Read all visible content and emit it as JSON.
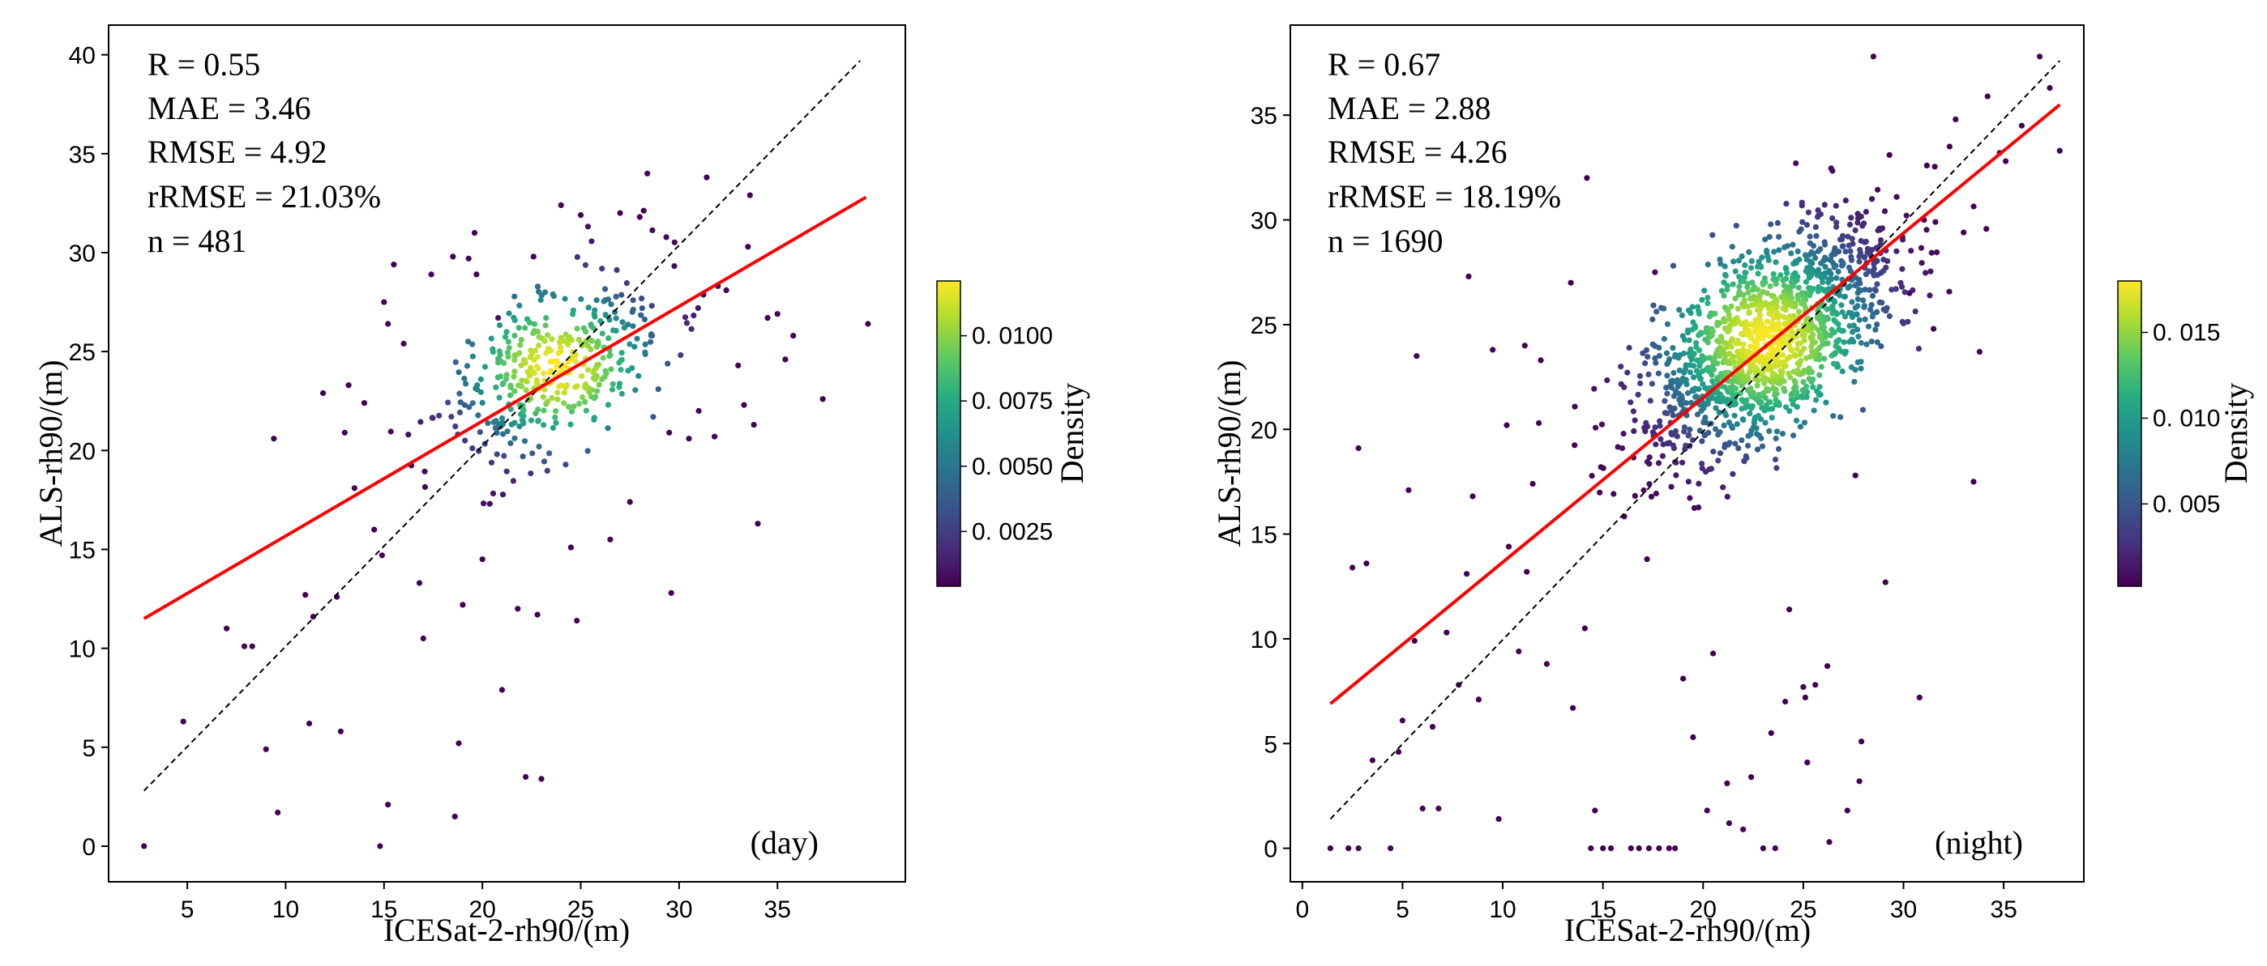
{
  "chart_data": [
    {
      "type": "scatter",
      "panel": "day",
      "title": "",
      "xlabel": "ICESat-2-rh90/(m)",
      "ylabel": "ALS-rh90/(m)",
      "xlim": [
        1,
        41.5
      ],
      "ylim": [
        -1.8,
        41.5
      ],
      "xticks": [
        5,
        10,
        15,
        20,
        25,
        30,
        35
      ],
      "yticks": [
        0,
        5,
        10,
        15,
        20,
        25,
        30,
        35,
        40
      ],
      "stats": [
        "R = 0.55",
        "MAE = 3.46",
        "RMSE = 4.92",
        "rRMSE = 21.03%",
        "n = 481"
      ],
      "tag": "(day)",
      "one_to_one_line": [
        [
          2.8,
          2.8
        ],
        [
          39.2,
          39.7
        ]
      ],
      "fit_line": [
        [
          2.8,
          11.5
        ],
        [
          39.5,
          32.8
        ]
      ],
      "colorbar": {
        "label": "Density",
        "min": 0.0004,
        "max": 0.0121,
        "ticks": [
          0.0025,
          0.005,
          0.0075,
          0.01
        ],
        "tick_labels": [
          "0. 0025",
          "0. 0050",
          "0. 0075",
          "0. 0100"
        ]
      },
      "cluster": {
        "center": [
          23.8,
          24.2
        ],
        "sx": 3.0,
        "sy": 2.5,
        "rho": 0.45,
        "count": 400,
        "seed": 11
      },
      "outliers": [
        [
          2.8,
          0
        ],
        [
          4.8,
          6.3
        ],
        [
          7,
          11
        ],
        [
          7.9,
          10.1
        ],
        [
          8.3,
          10.1
        ],
        [
          9,
          4.9
        ],
        [
          9.4,
          20.6
        ],
        [
          9.6,
          1.7
        ],
        [
          11,
          12.7
        ],
        [
          11.2,
          6.2
        ],
        [
          11.4,
          11.6
        ],
        [
          11.9,
          22.9
        ],
        [
          12.6,
          12.6
        ],
        [
          12.8,
          5.8
        ],
        [
          13,
          20.9
        ],
        [
          13.2,
          23.3
        ],
        [
          13.5,
          18.1
        ],
        [
          14,
          22.4
        ],
        [
          14.5,
          16
        ],
        [
          14.8,
          0
        ],
        [
          14.9,
          14.7
        ],
        [
          15.2,
          2.1
        ],
        [
          15,
          27.5
        ],
        [
          15.2,
          26.4
        ],
        [
          15.5,
          29.4
        ],
        [
          16,
          25.4
        ],
        [
          16.8,
          13.3
        ],
        [
          17,
          10.5
        ],
        [
          17.4,
          28.9
        ],
        [
          18.5,
          29.8
        ],
        [
          18.6,
          1.5
        ],
        [
          18.8,
          5.2
        ],
        [
          19,
          12.2
        ],
        [
          19.3,
          29.7
        ],
        [
          19.6,
          31
        ],
        [
          19.7,
          28.9
        ],
        [
          20,
          14.5
        ],
        [
          20.8,
          26.7
        ],
        [
          21,
          7.9
        ],
        [
          21.8,
          12
        ],
        [
          22.2,
          3.5
        ],
        [
          22.6,
          29.8
        ],
        [
          22.8,
          11.7
        ],
        [
          23,
          3.4
        ],
        [
          24,
          32.4
        ],
        [
          24.5,
          15.1
        ],
        [
          24.8,
          11.4
        ],
        [
          25,
          31.9
        ],
        [
          26.5,
          15.5
        ],
        [
          27,
          32
        ],
        [
          27.5,
          17.4
        ],
        [
          28,
          31.8
        ],
        [
          29.5,
          20.9
        ],
        [
          29.6,
          12.8
        ],
        [
          30.5,
          20.6
        ],
        [
          31,
          22
        ],
        [
          31.4,
          33.8
        ],
        [
          31.8,
          20.7
        ],
        [
          32.4,
          28.1
        ],
        [
          33,
          24.3
        ],
        [
          33.3,
          22.3
        ],
        [
          33.5,
          30.3
        ],
        [
          33.6,
          32.9
        ],
        [
          33.8,
          21.3
        ],
        [
          34,
          16.3
        ],
        [
          34.5,
          26.7
        ],
        [
          35,
          26.9
        ],
        [
          35.4,
          24.6
        ],
        [
          35.8,
          25.8
        ],
        [
          37.3,
          22.6
        ],
        [
          39.6,
          26.4
        ]
      ]
    },
    {
      "type": "scatter",
      "panel": "night",
      "title": "",
      "xlabel": "ICESat-2-rh90/(m)",
      "ylabel": "ALS-rh90/(m)",
      "xlim": [
        -0.6,
        39
      ],
      "ylim": [
        -1.6,
        39.3
      ],
      "xticks": [
        0,
        5,
        10,
        15,
        20,
        25,
        30,
        35
      ],
      "yticks": [
        0,
        5,
        10,
        15,
        20,
        25,
        30,
        35
      ],
      "stats": [
        "R = 0.67",
        "MAE = 2.88",
        "RMSE = 4.26",
        "rRMSE = 18.19%",
        "n = 1690"
      ],
      "tag": "(night)",
      "one_to_one_line": [
        [
          1.4,
          1.4
        ],
        [
          37.8,
          37.6
        ]
      ],
      "fit_line": [
        [
          1.4,
          6.9
        ],
        [
          37.8,
          35.5
        ]
      ],
      "colorbar": {
        "label": "Density",
        "min": 0.0002,
        "max": 0.018,
        "ticks": [
          0.005,
          0.01,
          0.015
        ],
        "tick_labels": [
          "0. 005",
          "0. 010",
          "0. 015"
        ]
      },
      "cluster": {
        "center": [
          23.2,
          24.3
        ],
        "sx": 3.2,
        "sy": 2.9,
        "rho": 0.62,
        "count": 1450,
        "seed": 29
      },
      "outliers": [
        [
          1.4,
          0
        ],
        [
          2.3,
          0
        ],
        [
          2.8,
          0
        ],
        [
          3.5,
          4.2
        ],
        [
          2.5,
          13.4
        ],
        [
          2.8,
          19.1
        ],
        [
          3.2,
          13.6
        ],
        [
          4.4,
          0
        ],
        [
          4.8,
          4.6
        ],
        [
          5,
          6.1
        ],
        [
          5.3,
          17.1
        ],
        [
          5.6,
          9.9
        ],
        [
          5.7,
          23.5
        ],
        [
          6,
          1.9
        ],
        [
          6.8,
          1.9
        ],
        [
          6.5,
          5.8
        ],
        [
          7.2,
          10.3
        ],
        [
          7.8,
          7.8
        ],
        [
          8.2,
          13.1
        ],
        [
          8.3,
          27.3
        ],
        [
          8.5,
          16.8
        ],
        [
          8.8,
          7.1
        ],
        [
          9.5,
          23.8
        ],
        [
          9.8,
          1.4
        ],
        [
          10.2,
          20.2
        ],
        [
          10.3,
          14.4
        ],
        [
          10.8,
          9.4
        ],
        [
          11.1,
          24
        ],
        [
          11.2,
          13.2
        ],
        [
          11.5,
          17.4
        ],
        [
          11.8,
          20.3
        ],
        [
          11.9,
          23.3
        ],
        [
          12.2,
          8.8
        ],
        [
          13.4,
          27
        ],
        [
          13.5,
          6.7
        ],
        [
          14.2,
          32
        ],
        [
          14.1,
          10.5
        ],
        [
          14.4,
          0
        ],
        [
          14.6,
          1.8
        ],
        [
          15,
          0
        ],
        [
          15.4,
          0
        ],
        [
          16.4,
          0
        ],
        [
          16.8,
          0
        ],
        [
          17.3,
          0
        ],
        [
          17.8,
          0
        ],
        [
          18.3,
          0
        ],
        [
          18.6,
          0
        ],
        [
          17.2,
          13.8
        ],
        [
          17.6,
          27.5
        ],
        [
          19,
          8.1
        ],
        [
          19.5,
          5.3
        ],
        [
          20.2,
          1.8
        ],
        [
          20.5,
          9.3
        ],
        [
          21.2,
          3.1
        ],
        [
          21.3,
          1.2
        ],
        [
          22,
          0.9
        ],
        [
          22.4,
          3.4
        ],
        [
          23,
          0
        ],
        [
          23.4,
          5.5
        ],
        [
          23.6,
          0
        ],
        [
          24.1,
          7
        ],
        [
          24.3,
          11.4
        ],
        [
          25,
          7.7
        ],
        [
          25.1,
          7.2
        ],
        [
          25.2,
          4.1
        ],
        [
          25.6,
          7.8
        ],
        [
          26.2,
          8.7
        ],
        [
          26.3,
          0.3
        ],
        [
          27.2,
          1.8
        ],
        [
          27.6,
          17.8
        ],
        [
          27.8,
          3.2
        ],
        [
          27.9,
          5.1
        ],
        [
          28.5,
          37.8
        ],
        [
          29.1,
          12.7
        ],
        [
          29.3,
          33.1
        ],
        [
          30.3,
          26.5
        ],
        [
          30.8,
          7.2
        ],
        [
          31.5,
          24.8
        ],
        [
          32.3,
          33.5
        ],
        [
          32.6,
          34.8
        ],
        [
          33,
          29.4
        ],
        [
          33.5,
          17.5
        ],
        [
          33.8,
          23.7
        ],
        [
          34.2,
          35.9
        ],
        [
          34.8,
          33.2
        ],
        [
          35.1,
          32.8
        ],
        [
          35.9,
          34.5
        ],
        [
          36.8,
          37.8
        ],
        [
          37.3,
          36.3
        ],
        [
          37.8,
          33.3
        ]
      ]
    }
  ]
}
